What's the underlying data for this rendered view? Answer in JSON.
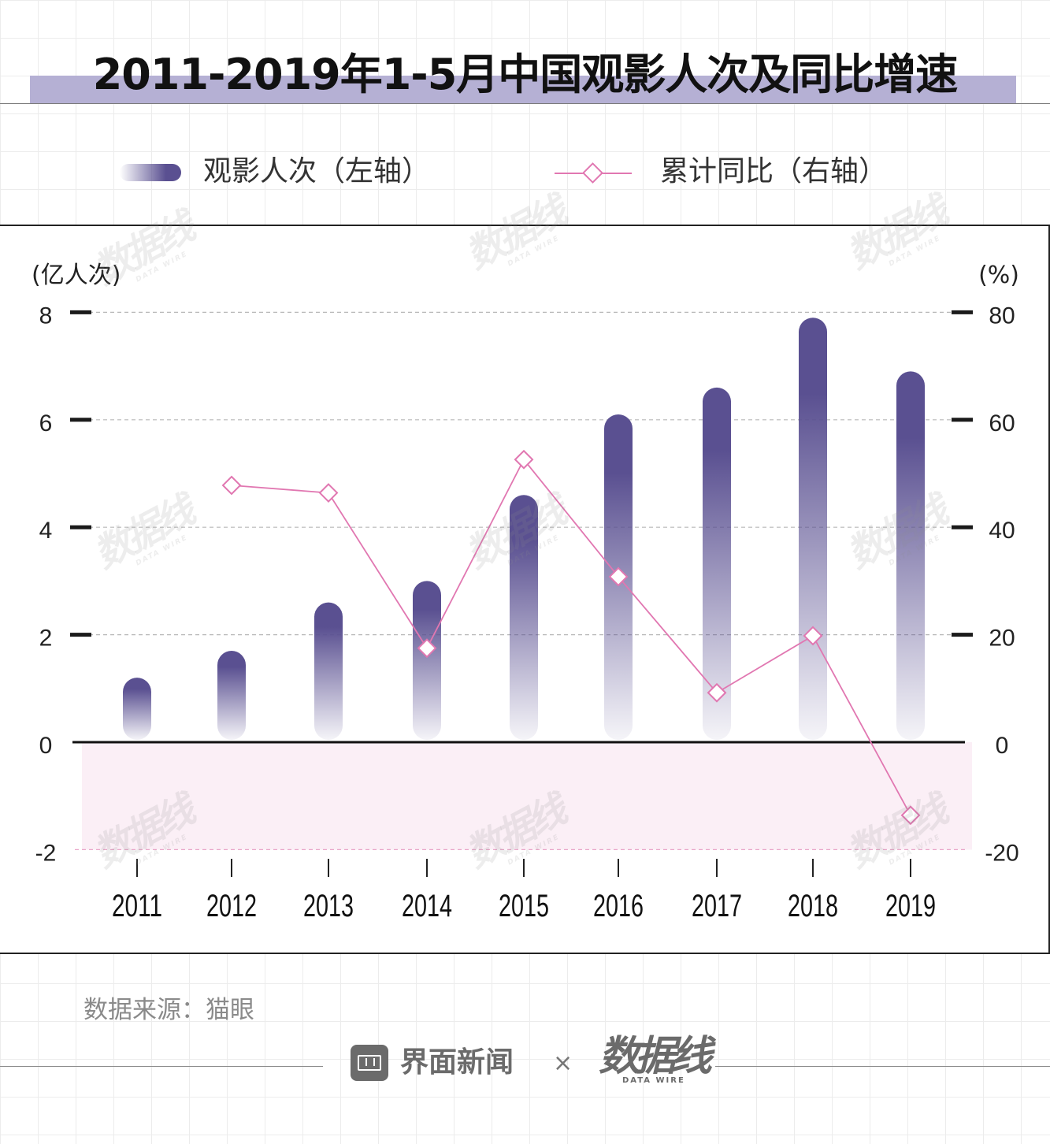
{
  "title": "2011-2019年1-5月中国观影人次及同比增速",
  "legend": {
    "bar_label": "观影人次（左轴）",
    "line_label": "累计同比（右轴）"
  },
  "source": "数据来源：猫眼",
  "footer": {
    "brand": "界面新闻",
    "times": "×",
    "logo_cn": "数据线",
    "logo_en": "DATA WIRE"
  },
  "chart_data": {
    "type": "bar",
    "categories": [
      "2011",
      "2012",
      "2013",
      "2014",
      "2015",
      "2016",
      "2017",
      "2018",
      "2019"
    ],
    "series": [
      {
        "name": "观影人次（左轴）",
        "type": "bar",
        "axis": "left",
        "values": [
          1.2,
          1.7,
          2.6,
          3.0,
          4.6,
          6.1,
          6.6,
          7.9,
          6.9
        ]
      },
      {
        "name": "累计同比（右轴）",
        "type": "line",
        "axis": "right",
        "values": [
          null,
          47.8,
          46.4,
          17.5,
          52.6,
          30.8,
          9.2,
          19.8,
          -13.6
        ]
      }
    ],
    "y_left": {
      "unit_label": "(亿人次)",
      "ylim": [
        -2,
        8
      ],
      "ticks": [
        8,
        6,
        4,
        2,
        0,
        -2
      ]
    },
    "y_right": {
      "unit_label": "(%)",
      "ylim": [
        -20,
        80
      ],
      "ticks": [
        80,
        60,
        40,
        20,
        0,
        -20
      ]
    },
    "grid": "dashed horizontal",
    "negative_band_color": "#fbeff6",
    "colors": {
      "bar": "#5a5091",
      "line": "#e177b1",
      "title_band": "#b5b0d4"
    }
  }
}
